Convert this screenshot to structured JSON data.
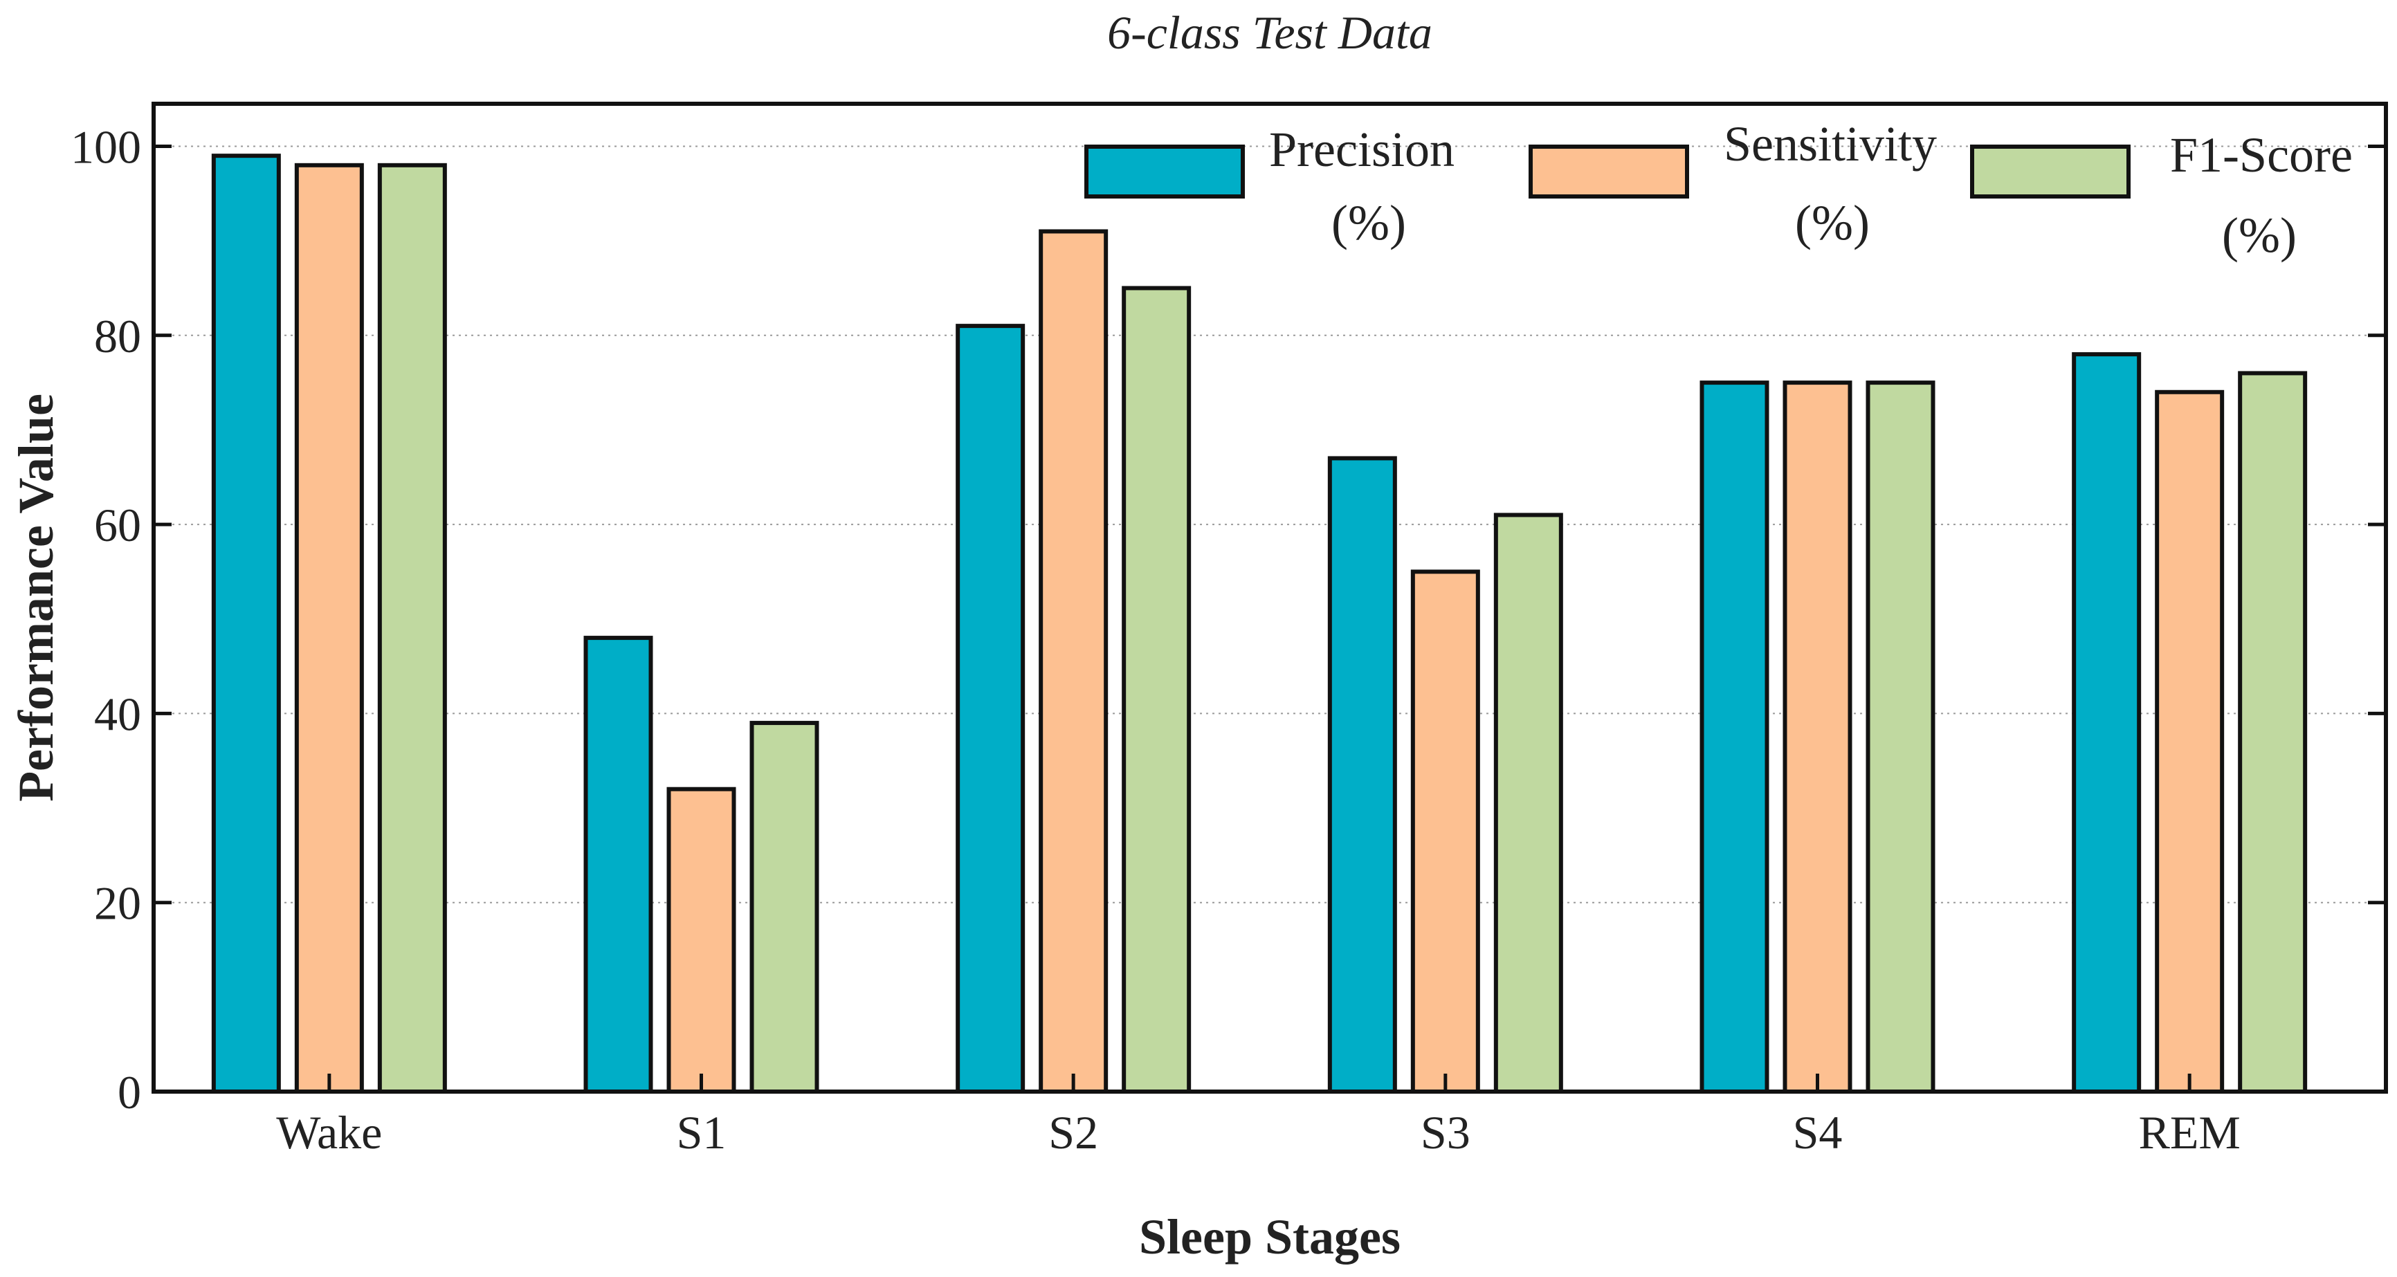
{
  "chart_data": {
    "type": "bar",
    "title": "6-class Test Data",
    "xlabel": "Sleep Stages",
    "ylabel": "Performance Value",
    "categories": [
      "Wake",
      "S1",
      "S2",
      "S3",
      "S4",
      "REM"
    ],
    "ylim": [
      0,
      100
    ],
    "yticks": [
      0,
      20,
      40,
      60,
      80,
      100
    ],
    "grid": true,
    "legend_position": "top-right",
    "series": [
      {
        "name": "Precision",
        "unit": "(%)",
        "color": "#00AEC7",
        "values": [
          99,
          48,
          81,
          67,
          75,
          78
        ]
      },
      {
        "name": "Sensitivity",
        "unit": "(%)",
        "color": "#FDC091",
        "values": [
          98,
          32,
          91,
          55,
          75,
          74
        ]
      },
      {
        "name": "F1-Score",
        "unit": "(%)",
        "color": "#C0D9A0",
        "values": [
          98,
          39,
          85,
          61,
          75,
          76
        ]
      }
    ]
  }
}
